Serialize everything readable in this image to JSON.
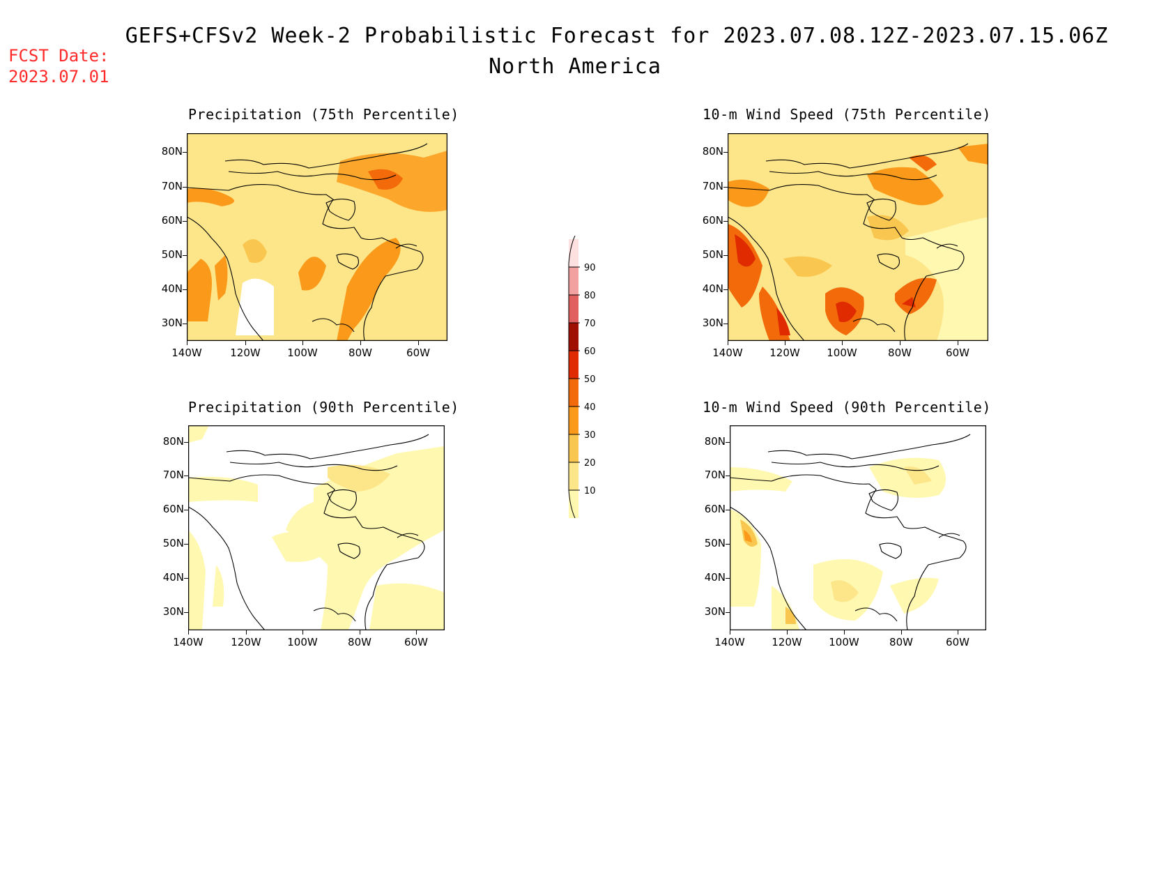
{
  "header": {
    "title": "GEFS+CFSv2 Week-2 Probabilistic Forecast for 2023.07.08.12Z-2023.07.15.06Z",
    "subtitle": "North America",
    "fcst_label": "FCST Date:",
    "fcst_date": "2023.07.01"
  },
  "panels": [
    {
      "title": "Precipitation (75th Percentile)"
    },
    {
      "title": "10-m Wind Speed (75th Percentile)"
    },
    {
      "title": "Precipitation (90th Percentile)"
    },
    {
      "title": "10-m Wind Speed (90th Percentile)"
    }
  ],
  "axes": {
    "lat_labels": [
      "80N",
      "70N",
      "60N",
      "50N",
      "40N",
      "30N"
    ],
    "lon_labels": [
      "140W",
      "120W",
      "100W",
      "80W",
      "60W"
    ]
  },
  "colorbar": {
    "levels": [
      "10",
      "20",
      "30",
      "40",
      "50",
      "60",
      "70",
      "80",
      "90"
    ],
    "colors": [
      "#fff8b0",
      "#fde68a",
      "#f9c74f",
      "#fb9a1a",
      "#f26a0a",
      "#e02a00",
      "#a01000",
      "#e06060",
      "#f3a0a0",
      "#fde0e0"
    ]
  }
}
